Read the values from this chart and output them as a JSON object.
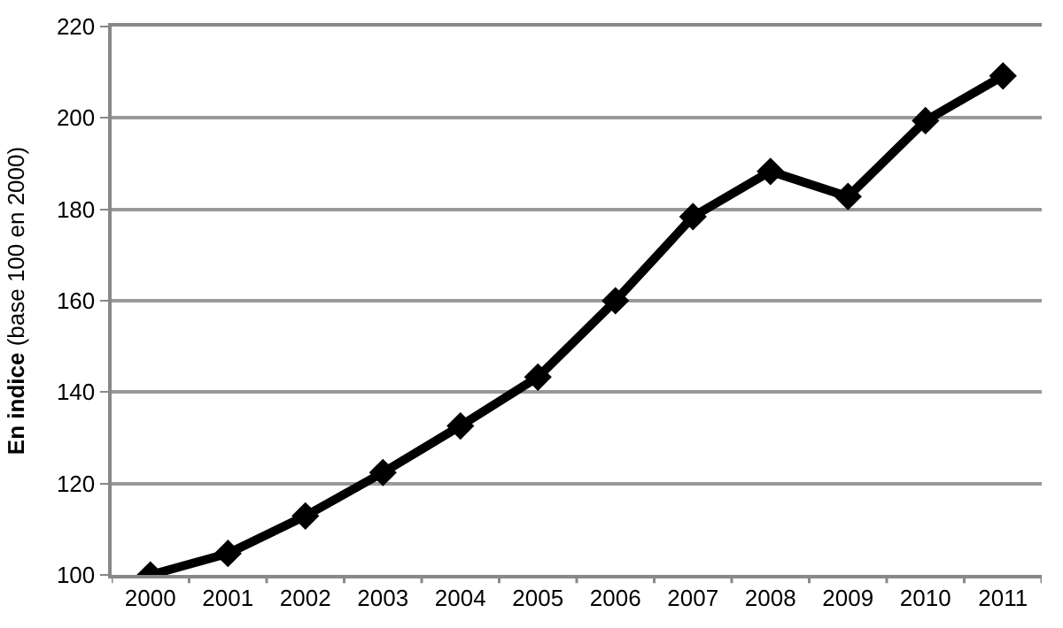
{
  "chart_data": {
    "type": "line",
    "ylabel": "En indice (base 100 en 2000)",
    "categories": [
      "2000",
      "2001",
      "2002",
      "2003",
      "2004",
      "2005",
      "2006",
      "2007",
      "2008",
      "2009",
      "2010",
      "2011"
    ],
    "series": [
      {
        "color": "#000000",
        "values": [
          100,
          104.7,
          112.9,
          122.4,
          132.6,
          143.3,
          160,
          178.4,
          188.3,
          182.8,
          199.4,
          209.2
        ]
      }
    ],
    "ylim": [
      100,
      220
    ],
    "yticks": [
      100,
      120,
      140,
      160,
      180,
      200,
      220
    ],
    "grid": "y",
    "marker": "diamond",
    "line_style": "solid"
  }
}
